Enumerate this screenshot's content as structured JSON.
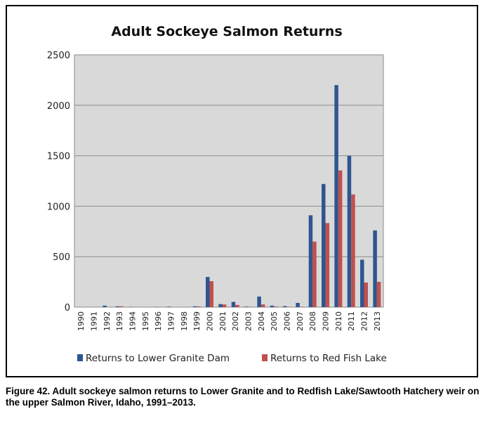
{
  "chart_data": {
    "type": "bar",
    "title": "Adult Sockeye Salmon Returns",
    "xlabel": "",
    "ylabel": "",
    "ylim": [
      0,
      2500
    ],
    "yticks": [
      0,
      500,
      1000,
      1500,
      2000,
      2500
    ],
    "grid": true,
    "legend_position": "bottom",
    "categories": [
      "1990",
      "1991",
      "1992",
      "1993",
      "1994",
      "1995",
      "1996",
      "1997",
      "1998",
      "1999",
      "2000",
      "2001",
      "2002",
      "2003",
      "2004",
      "2005",
      "2006",
      "2007",
      "2008",
      "2009",
      "2010",
      "2011",
      "2012",
      "2013"
    ],
    "series": [
      {
        "name": "Returns to Lower Granite  Dam",
        "color": "#2e5690",
        "values": [
          0,
          0,
          15,
          8,
          2,
          0,
          2,
          5,
          0,
          8,
          299,
          30,
          52,
          5,
          105,
          15,
          10,
          42,
          910,
          1220,
          2200,
          1500,
          470,
          760
        ]
      },
      {
        "name": "Returns to Red Fish Lake",
        "color": "#c0504d",
        "values": [
          0,
          0,
          1,
          8,
          1,
          0,
          1,
          0,
          0,
          7,
          257,
          26,
          22,
          3,
          27,
          6,
          3,
          4,
          650,
          833,
          1355,
          1117,
          244,
          251
        ]
      }
    ]
  },
  "caption": "Figure 42.  Adult sockeye salmon returns to Lower Granite and to Redfish Lake/Sawtooth Hatchery weir on the upper Salmon River, Idaho, 1991–2013."
}
